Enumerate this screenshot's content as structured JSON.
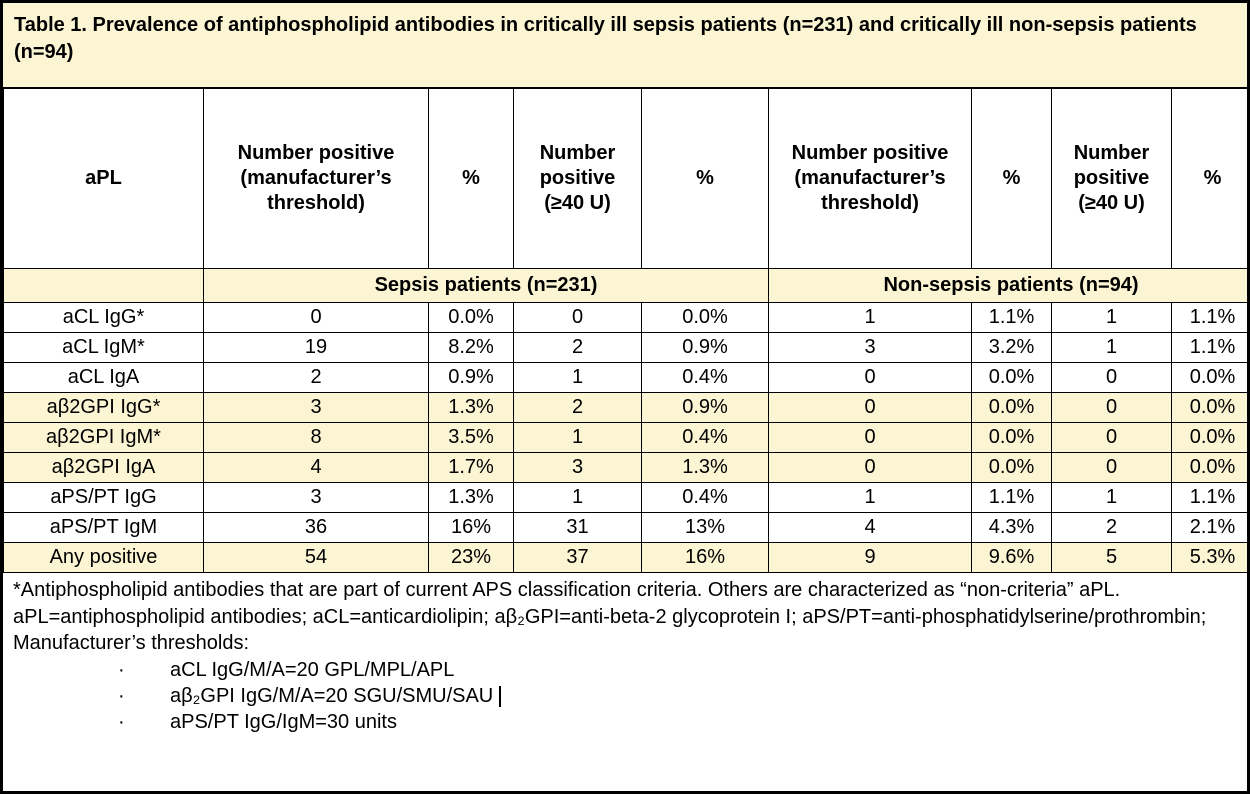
{
  "title": "Table 1. Prevalence of antiphospholipid antibodies in critically ill sepsis patients (n=231) and critically ill non-sepsis patients (n=94)",
  "table": {
    "columns": [
      "aPL",
      "Number positive (manufacturer’s threshold)",
      "%",
      "Number positive (≥40 U)",
      "%",
      "Number positive (manufacturer’s threshold)",
      "%",
      "Number positive (≥40 U)",
      "%"
    ],
    "groups": [
      "Sepsis patients (n=231)",
      "Non-sepsis patients (n=94)"
    ],
    "rows": [
      {
        "label": "aCL IgG*",
        "values": [
          "0",
          "0.0%",
          "0",
          "0.0%",
          "1",
          "1.1%",
          "1",
          "1.1%"
        ],
        "shaded": false
      },
      {
        "label": "aCL IgM*",
        "values": [
          "19",
          "8.2%",
          "2",
          "0.9%",
          "3",
          "3.2%",
          "1",
          "1.1%"
        ],
        "shaded": false
      },
      {
        "label": "aCL IgA",
        "values": [
          "2",
          "0.9%",
          "1",
          "0.4%",
          "0",
          "0.0%",
          "0",
          "0.0%"
        ],
        "shaded": false
      },
      {
        "label": "aβ2GPI IgG*",
        "values": [
          "3",
          "1.3%",
          "2",
          "0.9%",
          "0",
          "0.0%",
          "0",
          "0.0%"
        ],
        "shaded": true
      },
      {
        "label": "aβ2GPI IgM*",
        "values": [
          "8",
          "3.5%",
          "1",
          "0.4%",
          "0",
          "0.0%",
          "0",
          "0.0%"
        ],
        "shaded": true
      },
      {
        "label": "aβ2GPI IgA",
        "values": [
          "4",
          "1.7%",
          "3",
          "1.3%",
          "0",
          "0.0%",
          "0",
          "0.0%"
        ],
        "shaded": true
      },
      {
        "label": "aPS/PT IgG",
        "values": [
          "3",
          "1.3%",
          "1",
          "0.4%",
          "1",
          "1.1%",
          "1",
          "1.1%"
        ],
        "shaded": false
      },
      {
        "label": "aPS/PT IgM",
        "values": [
          "36",
          "16%",
          "31",
          "13%",
          "4",
          "4.3%",
          "2",
          "2.1%"
        ],
        "shaded": false
      },
      {
        "label": "Any positive",
        "values": [
          "54",
          "23%",
          "37",
          "16%",
          "9",
          "9.6%",
          "5",
          "5.3%"
        ],
        "shaded": true
      }
    ]
  },
  "footnotes": {
    "note1": "*Antiphospholipid antibodies that are part of current APS classification criteria. Others are characterized as “non-criteria” aPL.",
    "note2": "aPL=antiphospholipid antibodies; aCL=anticardiolipin; aβ₂GPI=anti-beta-2 glycoprotein I; aPS/PT=anti-phosphatidylserine/prothrombin; Manufacturer’s thresholds:",
    "bullets": [
      {
        "marker": "·",
        "text": "aCL IgG/M/A=20 GPL/MPL/APL"
      },
      {
        "marker": "·",
        "text": "aβ₂GPI IgG/M/A=20 SGU/SMU/SAU"
      },
      {
        "marker": "·",
        "text": "aPS/PT IgG/IgM=30 units"
      }
    ]
  },
  "colors": {
    "highlight": "#fcf5d4",
    "border": "#000000",
    "text": "#000000",
    "background": "#ffffff"
  }
}
